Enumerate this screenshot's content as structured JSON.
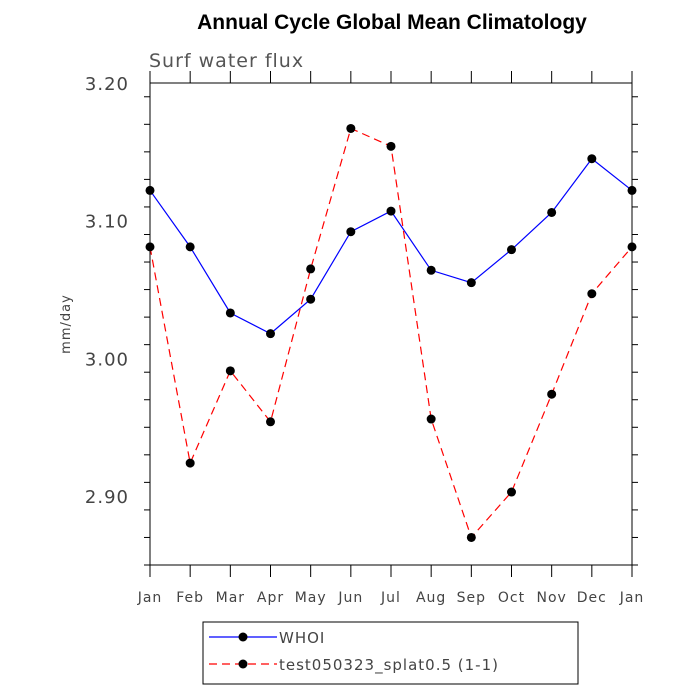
{
  "chart_data": {
    "type": "line",
    "title": "Annual Cycle Global Mean Climatology",
    "subtitle": "Surf water flux",
    "ylabel": "mm/day",
    "xlabel": "",
    "categories": [
      "Jan",
      "Feb",
      "Mar",
      "Apr",
      "May",
      "Jun",
      "Jul",
      "Aug",
      "Sep",
      "Oct",
      "Nov",
      "Dec",
      "Jan"
    ],
    "yticks": [
      "3.20",
      "3.10",
      "3.00",
      "2.90"
    ],
    "ylim": [
      2.85,
      3.2
    ],
    "grid": false,
    "legend_position": "bottom",
    "series": [
      {
        "name": "WHOI",
        "color": "#0000ff",
        "line_style": "solid",
        "marker": "filled-circle",
        "values": [
          3.122,
          3.081,
          3.033,
          3.018,
          3.043,
          3.092,
          3.107,
          3.064,
          3.055,
          3.079,
          3.106,
          3.145,
          3.122
        ]
      },
      {
        "name": "test050323_splat0.5 (1-1)",
        "color": "#ff0000",
        "line_style": "dashed",
        "marker": "filled-circle",
        "values": [
          3.081,
          2.924,
          2.991,
          2.954,
          3.065,
          3.167,
          3.154,
          2.956,
          2.87,
          2.903,
          2.974,
          3.047,
          3.081
        ]
      }
    ]
  }
}
